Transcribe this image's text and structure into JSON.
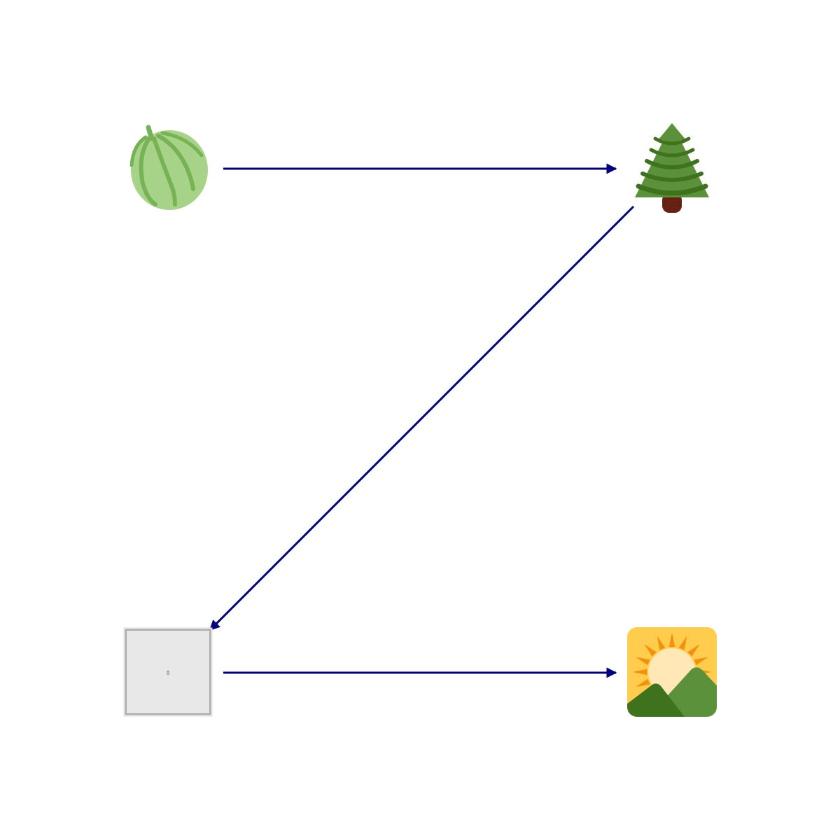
{
  "colors": {
    "arrow": "#000080",
    "background": "#ffffff",
    "placeholder_fill": "#e8e8e8",
    "placeholder_border": "#999999"
  },
  "nodes": [
    {
      "id": "melon",
      "icon": "melon-icon"
    },
    {
      "id": "tree",
      "icon": "evergreen-tree-icon"
    },
    {
      "id": "placeholder",
      "icon": "missing-image-placeholder-icon",
      "glyph": "▯"
    },
    {
      "id": "sunrise",
      "icon": "sunrise-over-mountains-icon"
    }
  ],
  "edges": [
    {
      "from": "melon",
      "to": "tree"
    },
    {
      "from": "tree",
      "to": "placeholder"
    },
    {
      "from": "placeholder",
      "to": "sunrise"
    }
  ]
}
